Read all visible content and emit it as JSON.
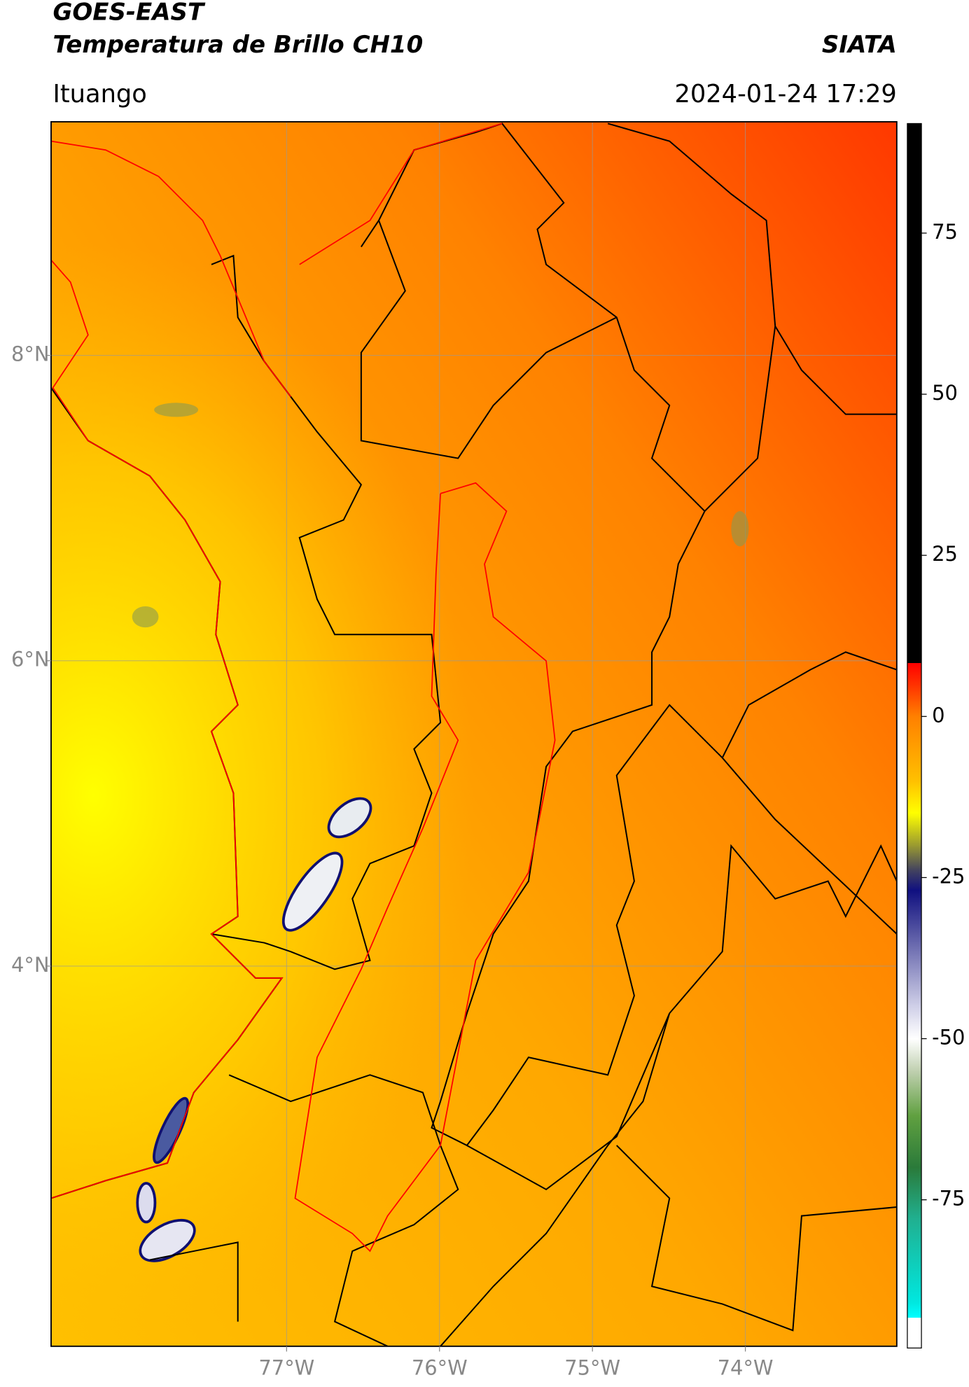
{
  "header": {
    "title_line1": "GOES-EAST",
    "title_line2": "Temperatura de Brillo CH10",
    "source": "SIATA",
    "location": "Ituango",
    "timestamp": "2024-01-24 17:29"
  },
  "map": {
    "xlim": [
      -78.54,
      -73.01
    ],
    "ylim": [
      1.51,
      9.53
    ],
    "xticks": [
      {
        "value": -77,
        "label": "77°W"
      },
      {
        "value": -76,
        "label": "76°W"
      },
      {
        "value": -75,
        "label": "75°W"
      },
      {
        "value": -74,
        "label": "74°W"
      }
    ],
    "yticks": [
      {
        "value": 8,
        "label": "8°N"
      },
      {
        "value": 6,
        "label": "6°N"
      },
      {
        "value": 4,
        "label": "4°N"
      }
    ],
    "grid": true
  },
  "colorbar": {
    "ylim": [
      -98,
      92
    ],
    "yticks": [
      75,
      50,
      25,
      0,
      -25,
      -50,
      -75
    ],
    "colors": [
      {
        "value": 92,
        "color": "#000000"
      },
      {
        "value": 8.3,
        "color": "#000000"
      },
      {
        "value": 8.3,
        "color": "#ff0000"
      },
      {
        "value": 5,
        "color": "#ff3000"
      },
      {
        "value": 0,
        "color": "#ff8000"
      },
      {
        "value": -10,
        "color": "#ffc000"
      },
      {
        "value": -15,
        "color": "#ffff00"
      },
      {
        "value": -20,
        "color": "#9a9a30"
      },
      {
        "value": -24,
        "color": "#404060"
      },
      {
        "value": -27,
        "color": "#101080"
      },
      {
        "value": -33,
        "color": "#5050a0"
      },
      {
        "value": -45,
        "color": "#d0d0e8"
      },
      {
        "value": -50,
        "color": "#ffffff"
      },
      {
        "value": -55,
        "color": "#c0d0b0"
      },
      {
        "value": -62,
        "color": "#60a040"
      },
      {
        "value": -70,
        "color": "#2a7a3a"
      },
      {
        "value": -78,
        "color": "#20b090"
      },
      {
        "value": -91,
        "color": "#00e8e0"
      },
      {
        "value": -93.3,
        "color": "#00ffff"
      },
      {
        "value": -93.3,
        "color": "#ffffff"
      },
      {
        "value": -98,
        "color": "#ffffff"
      }
    ]
  }
}
